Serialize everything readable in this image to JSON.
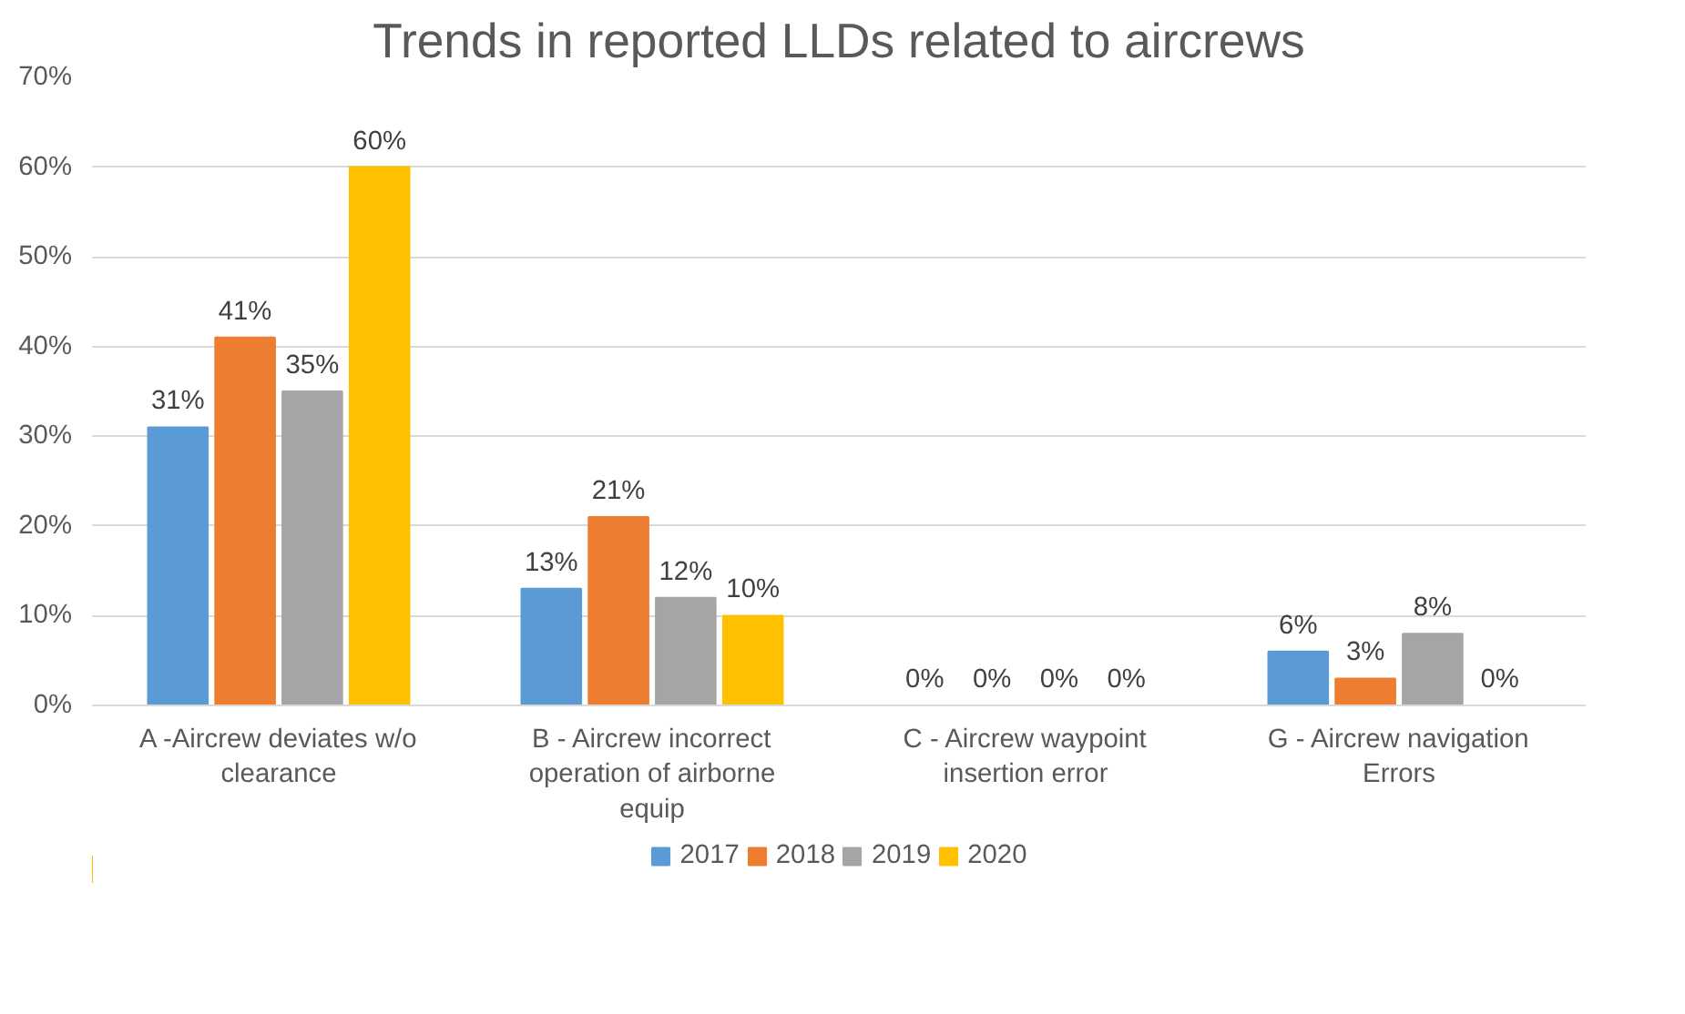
{
  "chart_data": {
    "type": "bar",
    "title": "Trends in reported LLDs related to aircrews",
    "categories": [
      "A -Aircrew deviates w/o clearance",
      "B - Aircrew incorrect operation of airborne equip",
      "C - Aircrew waypoint insertion error",
      "G - Aircrew navigation Errors"
    ],
    "series": [
      {
        "name": "2017",
        "color": "#5b9bd5",
        "values": [
          31,
          13,
          0,
          6
        ],
        "value_labels": [
          "31%",
          "13%",
          "0%",
          "6%"
        ]
      },
      {
        "name": "2018",
        "color": "#ed7d31",
        "values": [
          41,
          21,
          0,
          3
        ],
        "value_labels": [
          "41%",
          "21%",
          "0%",
          "3%"
        ]
      },
      {
        "name": "2019",
        "color": "#a5a5a5",
        "values": [
          35,
          12,
          0,
          8
        ],
        "value_labels": [
          "35%",
          "12%",
          "0%",
          "8%"
        ]
      },
      {
        "name": "2020",
        "color": "#ffc000",
        "values": [
          60,
          10,
          0,
          0
        ],
        "value_labels": [
          "60%",
          "10%",
          "0%",
          "0%"
        ]
      }
    ],
    "ylim": [
      0,
      70
    ],
    "yticks": [
      {
        "value": 0,
        "label": "0%"
      },
      {
        "value": 10,
        "label": "10%"
      },
      {
        "value": 20,
        "label": "20%"
      },
      {
        "value": 30,
        "label": "30%"
      },
      {
        "value": 40,
        "label": "40%"
      },
      {
        "value": 50,
        "label": "50%"
      },
      {
        "value": 60,
        "label": "60%"
      },
      {
        "value": 70,
        "label": "70%"
      }
    ],
    "grid": "y",
    "legend": "bottom"
  }
}
